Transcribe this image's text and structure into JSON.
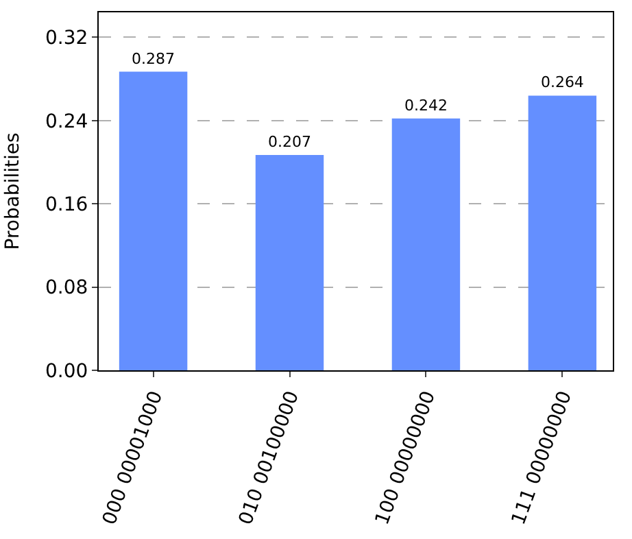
{
  "chart_data": {
    "type": "bar",
    "ylabel": "Probabilities",
    "categories": [
      "000 00001000",
      "010 00100000",
      "100 00000000",
      "111 00000000"
    ],
    "values": [
      0.287,
      0.207,
      0.242,
      0.264
    ],
    "color": "#648fff",
    "ylim": [
      0,
      0.344
    ],
    "yticks": [
      {
        "value": 0,
        "label": "0.00"
      },
      {
        "value": 0.08,
        "label": "0.08"
      },
      {
        "value": 0.16,
        "label": "0.16"
      },
      {
        "value": 0.24,
        "label": "0.24"
      },
      {
        "value": 0.32,
        "label": "0.32"
      }
    ],
    "grid": "y",
    "data_labels": true
  }
}
